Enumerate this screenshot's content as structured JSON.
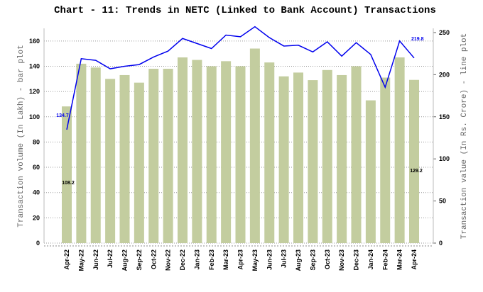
{
  "chart_data": {
    "type": "bar-line",
    "title": "Chart - 11: Trends in NETC (Linked to Bank Account) Transactions",
    "y_label": "Transaction volume (In Lakh) - bar plot",
    "y2_label": "Transaction value (In Rs. Crore) - line plot",
    "categories": [
      "Apr-22",
      "May-22",
      "Jun-22",
      "Jul-22",
      "Aug-22",
      "Sep-22",
      "Oct-22",
      "Nov-22",
      "Dec-22",
      "Jan-23",
      "Feb-23",
      "Mar-23",
      "Apr-23",
      "May-23",
      "Jun-23",
      "Jul-23",
      "Aug-23",
      "Sep-23",
      "Oct-23",
      "Nov-23",
      "Dec-23",
      "Jan-24",
      "Feb-24",
      "Mar-24",
      "Apr-24"
    ],
    "series": [
      {
        "name": "Transaction volume",
        "type": "bar",
        "color": "#c3cd9f",
        "values": [
          108.2,
          142,
          139,
          130,
          133,
          127,
          138,
          138,
          147,
          145,
          140,
          144,
          140,
          154,
          143,
          132,
          135,
          129,
          137,
          133,
          140,
          113,
          131,
          147,
          129.2
        ]
      },
      {
        "name": "Transaction value",
        "type": "line",
        "axis": "y2",
        "color": "#0000ee",
        "values": [
          134.7,
          219,
          217,
          207,
          210,
          212,
          221,
          228,
          243,
          237,
          231,
          247,
          245,
          257,
          244,
          234,
          235,
          227,
          239,
          222,
          238,
          224,
          185,
          240,
          219.8
        ]
      }
    ],
    "ylim": [
      0,
      170
    ],
    "yticks": [
      0,
      20,
      40,
      60,
      80,
      100,
      120,
      140,
      160
    ],
    "y2lim": [
      0,
      255
    ],
    "y2ticks": [
      0,
      50,
      100,
      150,
      200,
      250
    ],
    "grid": true
  }
}
